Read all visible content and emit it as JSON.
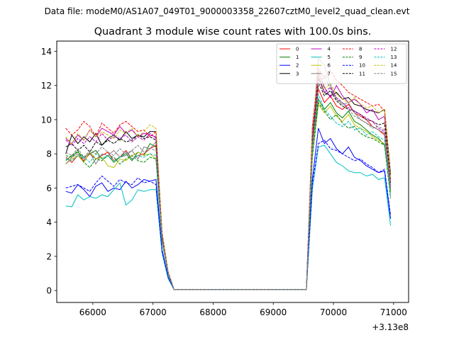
{
  "suptitle": "Data file: modeM0/AS1A07_049T01_9000003358_22607cztM0_level2_quad_clean.evt",
  "chart_data": {
    "type": "line",
    "title": "Quadrant 3 module wise count rates with 100.0s bins.",
    "xlabel": "",
    "ylabel": "",
    "x_offset_label": "+3.13e8",
    "x_offset_value": 313000000,
    "xlim": [
      65400,
      71250
    ],
    "ylim": [
      -0.7,
      14.6
    ],
    "xticks": [
      66000,
      67000,
      68000,
      69000,
      70000,
      71000
    ],
    "xtick_labels": [
      "66000",
      "67000",
      "68000",
      "69000",
      "70000",
      "71000"
    ],
    "yticks": [
      0,
      2,
      4,
      6,
      8,
      10,
      12,
      14
    ],
    "ytick_labels": [
      "0",
      "2",
      "4",
      "6",
      "8",
      "10",
      "12",
      "14"
    ],
    "grid": false,
    "legend": {
      "placement": "top-right",
      "columns": 4
    },
    "x": [
      65550,
      65650,
      65750,
      65850,
      65950,
      66050,
      66150,
      66250,
      66350,
      66450,
      66550,
      66650,
      66750,
      66850,
      66950,
      67050,
      67150,
      67250,
      67350,
      67450,
      67550,
      67650,
      67750,
      67850,
      67950,
      68050,
      68150,
      68250,
      68350,
      68450,
      68550,
      68650,
      68750,
      68850,
      68950,
      69050,
      69150,
      69250,
      69350,
      69450,
      69550,
      69650,
      69750,
      69850,
      69950,
      70050,
      70150,
      70250,
      70350,
      70450,
      70550,
      70650,
      70750,
      70850,
      70950
    ],
    "series": [
      {
        "name": "0",
        "color": "#ff0000",
        "dash": "solid",
        "values": [
          7.8,
          7.5,
          7.9,
          7.6,
          8.0,
          7.7,
          7.9,
          8.1,
          7.6,
          7.8,
          8.2,
          7.7,
          7.9,
          8.0,
          8.3,
          8.5,
          3.0,
          1.0,
          0.05,
          0.05,
          0.05,
          0.05,
          0.05,
          0.05,
          0.05,
          0.05,
          0.05,
          0.05,
          0.05,
          0.05,
          0.05,
          0.05,
          0.05,
          0.05,
          0.05,
          0.05,
          0.05,
          0.05,
          0.05,
          0.05,
          0.05,
          8.5,
          11.8,
          11.0,
          11.4,
          10.8,
          10.6,
          10.9,
          10.4,
          10.2,
          10.0,
          9.6,
          9.4,
          9.1,
          6.0
        ]
      },
      {
        "name": "1",
        "color": "#008000",
        "dash": "solid",
        "values": [
          7.6,
          7.9,
          8.1,
          7.8,
          8.0,
          8.2,
          7.7,
          7.9,
          7.5,
          7.8,
          8.0,
          7.6,
          8.1,
          7.9,
          8.6,
          8.4,
          3.0,
          1.0,
          0.05,
          0.05,
          0.05,
          0.05,
          0.05,
          0.05,
          0.05,
          0.05,
          0.05,
          0.05,
          0.05,
          0.05,
          0.05,
          0.05,
          0.05,
          0.05,
          0.05,
          0.05,
          0.05,
          0.05,
          0.05,
          0.05,
          0.05,
          8.4,
          11.2,
          10.6,
          11.0,
          10.4,
          10.1,
          10.5,
          9.9,
          9.7,
          9.4,
          9.1,
          8.9,
          8.5,
          5.8
        ]
      },
      {
        "name": "2",
        "color": "#0000ff",
        "dash": "solid",
        "values": [
          5.8,
          5.7,
          6.2,
          5.9,
          5.5,
          6.1,
          6.3,
          5.8,
          6.0,
          5.9,
          6.4,
          6.0,
          6.2,
          6.5,
          6.4,
          6.5,
          2.4,
          0.8,
          0.05,
          0.05,
          0.05,
          0.05,
          0.05,
          0.05,
          0.05,
          0.05,
          0.05,
          0.05,
          0.05,
          0.05,
          0.05,
          0.05,
          0.05,
          0.05,
          0.05,
          0.05,
          0.05,
          0.05,
          0.05,
          0.05,
          0.05,
          6.5,
          9.5,
          8.6,
          8.9,
          8.3,
          8.0,
          8.4,
          7.8,
          7.6,
          7.3,
          7.1,
          6.9,
          7.0,
          4.2
        ]
      },
      {
        "name": "3",
        "color": "#000000",
        "dash": "solid",
        "values": [
          8.0,
          9.1,
          8.6,
          9.0,
          8.7,
          9.2,
          8.5,
          8.9,
          9.1,
          8.8,
          9.3,
          8.9,
          9.1,
          9.0,
          9.3,
          9.3,
          3.4,
          1.1,
          0.05,
          0.05,
          0.05,
          0.05,
          0.05,
          0.05,
          0.05,
          0.05,
          0.05,
          0.05,
          0.05,
          0.05,
          0.05,
          0.05,
          0.05,
          0.05,
          0.05,
          0.05,
          0.05,
          0.05,
          0.05,
          0.05,
          0.05,
          9.0,
          12.5,
          11.6,
          11.4,
          11.6,
          11.2,
          11.3,
          10.9,
          10.8,
          10.6,
          10.5,
          10.4,
          10.6,
          6.8
        ]
      },
      {
        "name": "4",
        "color": "#bf00bf",
        "dash": "solid",
        "values": [
          8.9,
          8.6,
          9.1,
          8.8,
          9.4,
          9.0,
          9.5,
          9.3,
          9.1,
          9.6,
          9.2,
          9.4,
          9.0,
          9.2,
          9.1,
          9.0,
          3.3,
          1.1,
          0.05,
          0.05,
          0.05,
          0.05,
          0.05,
          0.05,
          0.05,
          0.05,
          0.05,
          0.05,
          0.05,
          0.05,
          0.05,
          0.05,
          0.05,
          0.05,
          0.05,
          0.05,
          0.05,
          0.05,
          0.05,
          0.05,
          0.05,
          9.6,
          12.8,
          11.9,
          11.3,
          12.0,
          11.4,
          11.0,
          11.2,
          10.9,
          10.4,
          10.6,
          10.0,
          10.2,
          6.5
        ]
      },
      {
        "name": "5",
        "color": "#00bfbf",
        "dash": "solid",
        "values": [
          4.95,
          4.9,
          5.6,
          5.3,
          5.5,
          5.4,
          5.6,
          5.5,
          5.9,
          6.3,
          5.0,
          5.3,
          5.9,
          5.8,
          5.9,
          5.9,
          2.2,
          0.7,
          0.05,
          0.05,
          0.05,
          0.05,
          0.05,
          0.05,
          0.05,
          0.05,
          0.05,
          0.05,
          0.05,
          0.05,
          0.05,
          0.05,
          0.05,
          0.05,
          0.05,
          0.05,
          0.05,
          0.05,
          0.05,
          0.05,
          0.05,
          5.9,
          8.4,
          8.5,
          8.0,
          7.5,
          7.3,
          7.0,
          6.9,
          6.9,
          6.7,
          6.8,
          6.5,
          6.6,
          3.8
        ]
      },
      {
        "name": "6",
        "color": "#bfbf00",
        "dash": "solid",
        "values": [
          7.4,
          7.7,
          7.9,
          7.5,
          8.1,
          7.7,
          7.8,
          7.3,
          7.2,
          7.7,
          7.6,
          7.9,
          8.1,
          7.9,
          8.0,
          7.7,
          2.9,
          1.0,
          0.05,
          0.05,
          0.05,
          0.05,
          0.05,
          0.05,
          0.05,
          0.05,
          0.05,
          0.05,
          0.05,
          0.05,
          0.05,
          0.05,
          0.05,
          0.05,
          0.05,
          0.05,
          0.05,
          0.05,
          0.05,
          0.05,
          0.05,
          7.8,
          10.9,
          10.4,
          10.8,
          10.2,
          9.9,
          10.3,
          9.7,
          9.5,
          9.3,
          9.0,
          8.8,
          8.6,
          5.7
        ]
      },
      {
        "name": "7",
        "color": "#808080",
        "dash": "solid",
        "values": [
          7.4,
          7.8,
          8.0,
          7.7,
          8.1,
          7.4,
          8.0,
          7.9,
          8.2,
          7.8,
          7.9,
          8.2,
          7.7,
          8.4,
          8.3,
          8.7,
          3.1,
          1.0,
          0.05,
          0.05,
          0.05,
          0.05,
          0.05,
          0.05,
          0.05,
          0.05,
          0.05,
          0.05,
          0.05,
          0.05,
          0.05,
          0.05,
          0.05,
          0.05,
          0.05,
          0.05,
          0.05,
          0.05,
          0.05,
          0.05,
          0.05,
          8.8,
          13.6,
          13.2,
          12.0,
          11.2,
          10.9,
          11.0,
          10.4,
          10.0,
          9.8,
          9.6,
          9.4,
          9.2,
          5.9
        ]
      },
      {
        "name": "8",
        "color": "#ff0000",
        "dash": "dashed",
        "values": [
          9.5,
          9.1,
          9.4,
          9.9,
          9.6,
          9.0,
          9.8,
          9.5,
          9.2,
          9.7,
          9.9,
          9.6,
          9.3,
          9.4,
          9.0,
          9.3,
          3.4,
          1.1,
          0.05,
          0.05,
          0.05,
          0.05,
          0.05,
          0.05,
          0.05,
          0.05,
          0.05,
          0.05,
          0.05,
          0.05,
          0.05,
          0.05,
          0.05,
          0.05,
          0.05,
          0.05,
          0.05,
          0.05,
          0.05,
          0.05,
          0.05,
          9.4,
          13.0,
          12.4,
          12.9,
          12.3,
          12.0,
          11.6,
          11.4,
          11.2,
          11.0,
          10.8,
          10.9,
          10.5,
          6.3
        ]
      },
      {
        "name": "9",
        "color": "#008000",
        "dash": "dashed",
        "values": [
          7.9,
          7.8,
          8.2,
          7.5,
          7.2,
          7.7,
          7.6,
          7.9,
          7.8,
          7.4,
          7.7,
          7.9,
          7.6,
          7.5,
          7.8,
          7.7,
          2.9,
          1.0,
          0.05,
          0.05,
          0.05,
          0.05,
          0.05,
          0.05,
          0.05,
          0.05,
          0.05,
          0.05,
          0.05,
          0.05,
          0.05,
          0.05,
          0.05,
          0.05,
          0.05,
          0.05,
          0.05,
          0.05,
          0.05,
          0.05,
          0.05,
          7.8,
          11.0,
          10.5,
          10.0,
          10.3,
          9.8,
          9.5,
          9.6,
          9.2,
          9.0,
          8.9,
          8.7,
          8.5,
          5.4
        ]
      },
      {
        "name": "10",
        "color": "#0000ff",
        "dash": "dashed",
        "values": [
          6.0,
          6.1,
          6.2,
          6.0,
          5.8,
          6.3,
          6.7,
          6.4,
          6.1,
          6.5,
          6.3,
          6.2,
          6.6,
          6.3,
          6.4,
          6.2,
          2.3,
          0.8,
          0.05,
          0.05,
          0.05,
          0.05,
          0.05,
          0.05,
          0.05,
          0.05,
          0.05,
          0.05,
          0.05,
          0.05,
          0.05,
          0.05,
          0.05,
          0.05,
          0.05,
          0.05,
          0.05,
          0.05,
          0.05,
          0.05,
          0.05,
          6.2,
          8.6,
          8.8,
          8.3,
          8.2,
          8.0,
          7.8,
          7.6,
          7.7,
          7.4,
          7.2,
          6.9,
          7.1,
          4.4
        ]
      },
      {
        "name": "11",
        "color": "#000000",
        "dash": "dashed",
        "values": [
          8.4,
          8.6,
          8.2,
          8.5,
          8.1,
          8.7,
          8.5,
          8.8,
          8.6,
          8.9,
          8.7,
          8.8,
          9.1,
          8.9,
          9.0,
          8.8,
          3.2,
          1.1,
          0.05,
          0.05,
          0.05,
          0.05,
          0.05,
          0.05,
          0.05,
          0.05,
          0.05,
          0.05,
          0.05,
          0.05,
          0.05,
          0.05,
          0.05,
          0.05,
          0.05,
          0.05,
          0.05,
          0.05,
          0.05,
          0.05,
          0.05,
          8.9,
          12.2,
          11.4,
          11.7,
          11.1,
          10.8,
          10.6,
          10.5,
          10.3,
          10.0,
          9.9,
          9.7,
          9.8,
          6.2
        ]
      },
      {
        "name": "12",
        "color": "#bf00bf",
        "dash": "dashed",
        "values": [
          8.8,
          8.5,
          8.9,
          8.6,
          9.0,
          8.7,
          9.2,
          8.8,
          9.0,
          8.9,
          9.1,
          8.7,
          9.0,
          8.8,
          9.2,
          8.9,
          3.2,
          1.1,
          0.05,
          0.05,
          0.05,
          0.05,
          0.05,
          0.05,
          0.05,
          0.05,
          0.05,
          0.05,
          0.05,
          0.05,
          0.05,
          0.05,
          0.05,
          0.05,
          0.05,
          0.05,
          0.05,
          0.05,
          0.05,
          0.05,
          0.05,
          9.0,
          12.4,
          11.6,
          11.9,
          11.3,
          11.0,
          10.7,
          10.5,
          10.3,
          10.1,
          9.9,
          9.5,
          9.3,
          6.0
        ]
      },
      {
        "name": "13",
        "color": "#00bfbf",
        "dash": "dashed",
        "values": [
          7.7,
          7.6,
          7.9,
          7.8,
          7.5,
          8.0,
          7.7,
          7.9,
          7.6,
          7.8,
          8.1,
          7.7,
          7.9,
          7.8,
          8.0,
          7.9,
          2.9,
          1.0,
          0.05,
          0.05,
          0.05,
          0.05,
          0.05,
          0.05,
          0.05,
          0.05,
          0.05,
          0.05,
          0.05,
          0.05,
          0.05,
          0.05,
          0.05,
          0.05,
          0.05,
          0.05,
          0.05,
          0.05,
          0.05,
          0.05,
          0.05,
          8.2,
          11.5,
          10.6,
          10.2,
          9.8,
          9.6,
          9.9,
          9.4,
          9.5,
          9.1,
          9.3,
          9.0,
          8.8,
          5.5
        ]
      },
      {
        "name": "14",
        "color": "#bfbf00",
        "dash": "dashed",
        "values": [
          9.0,
          8.6,
          9.2,
          8.8,
          9.4,
          9.0,
          9.3,
          9.1,
          8.9,
          9.4,
          9.2,
          9.5,
          9.0,
          9.3,
          9.7,
          9.5,
          3.4,
          1.1,
          0.05,
          0.05,
          0.05,
          0.05,
          0.05,
          0.05,
          0.05,
          0.05,
          0.05,
          0.05,
          0.05,
          0.05,
          0.05,
          0.05,
          0.05,
          0.05,
          0.05,
          0.05,
          0.05,
          0.05,
          0.05,
          0.05,
          0.05,
          9.5,
          12.7,
          11.8,
          12.1,
          11.5,
          11.2,
          11.0,
          11.3,
          10.9,
          10.7,
          10.8,
          10.4,
          10.6,
          6.6
        ]
      },
      {
        "name": "15",
        "color": "#808080",
        "dash": "dashed",
        "values": [
          8.1,
          7.9,
          8.3,
          7.8,
          8.2,
          8.0,
          8.4,
          8.1,
          7.9,
          8.3,
          8.0,
          8.2,
          8.5,
          8.1,
          8.3,
          8.2,
          3.0,
          1.0,
          0.05,
          0.05,
          0.05,
          0.05,
          0.05,
          0.05,
          0.05,
          0.05,
          0.05,
          0.05,
          0.05,
          0.05,
          0.05,
          0.05,
          0.05,
          0.05,
          0.05,
          0.05,
          0.05,
          0.05,
          0.05,
          0.05,
          0.05,
          8.4,
          11.9,
          12.6,
          11.8,
          11.2,
          11.0,
          10.6,
          10.2,
          10.0,
          9.8,
          9.5,
          9.6,
          9.4,
          6.1
        ]
      }
    ]
  }
}
